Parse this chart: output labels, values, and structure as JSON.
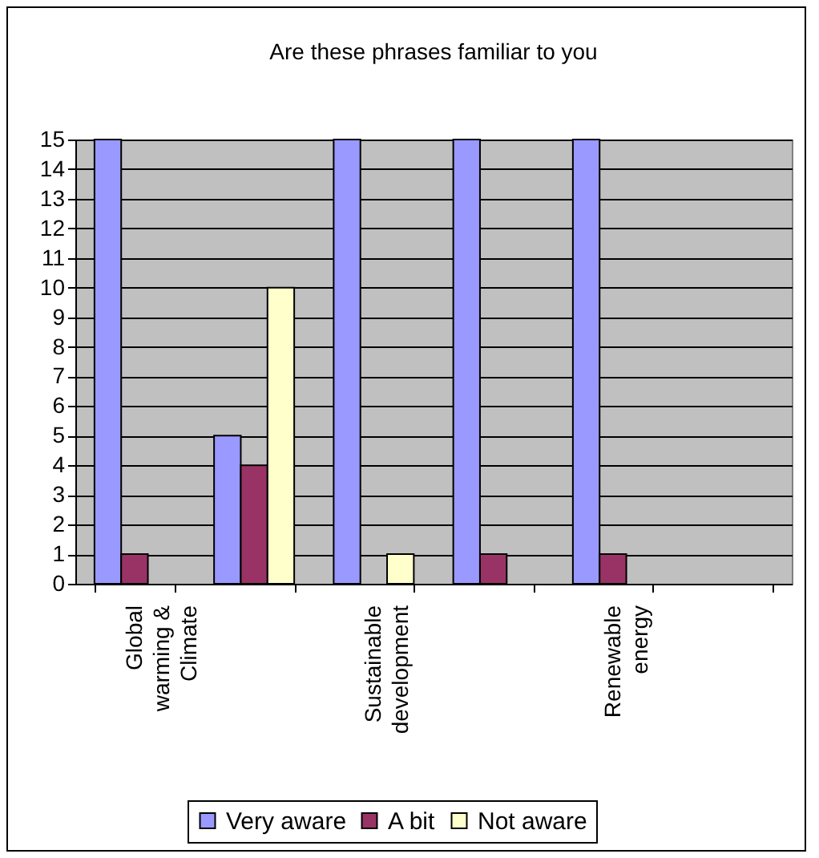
{
  "chart_data": {
    "type": "bar",
    "title": "Are these phrases familiar to you",
    "categories": [
      "Global warming & Climate",
      null,
      "Sustainable development",
      null,
      "Renewable energy",
      null
    ],
    "series": [
      {
        "name": "Very aware",
        "color": "#9999ff",
        "values": [
          15,
          5,
          15,
          15,
          15,
          null
        ]
      },
      {
        "name": "A bit",
        "color": "#993366",
        "values": [
          1,
          4,
          null,
          1,
          1,
          null
        ]
      },
      {
        "name": "Not aware",
        "color": "#ffffcc",
        "values": [
          null,
          10,
          1,
          null,
          null,
          null
        ]
      }
    ],
    "ylim": [
      0,
      15
    ],
    "yticks": [
      0,
      1,
      2,
      3,
      4,
      5,
      6,
      7,
      8,
      9,
      10,
      11,
      12,
      13,
      14,
      15
    ],
    "grid": "y",
    "legend": "bottom"
  }
}
